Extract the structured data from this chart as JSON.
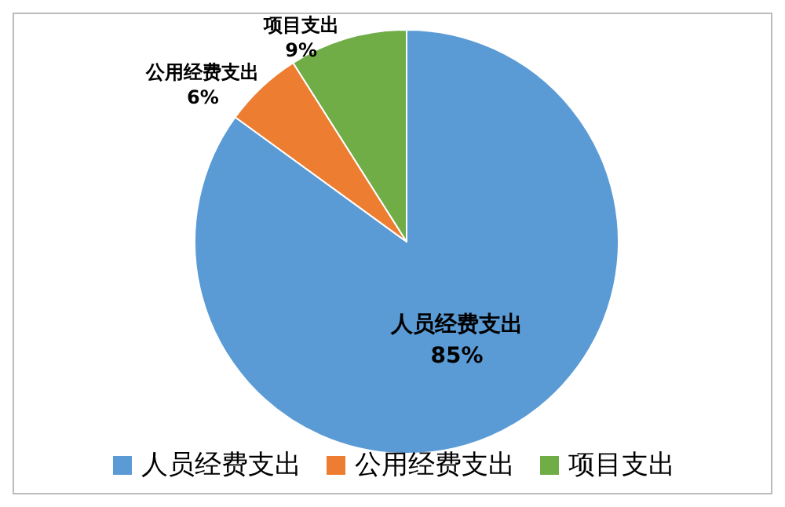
{
  "chart_data": {
    "type": "pie",
    "categories": [
      "人员经费支出",
      "公用经费支出",
      "项目支出"
    ],
    "values": [
      85,
      6,
      9
    ],
    "colors": [
      "#5b9bd5",
      "#ed7d31",
      "#70ad47"
    ],
    "value_labels": [
      "85%",
      "6%",
      "9%"
    ],
    "legend": "bottom"
  }
}
